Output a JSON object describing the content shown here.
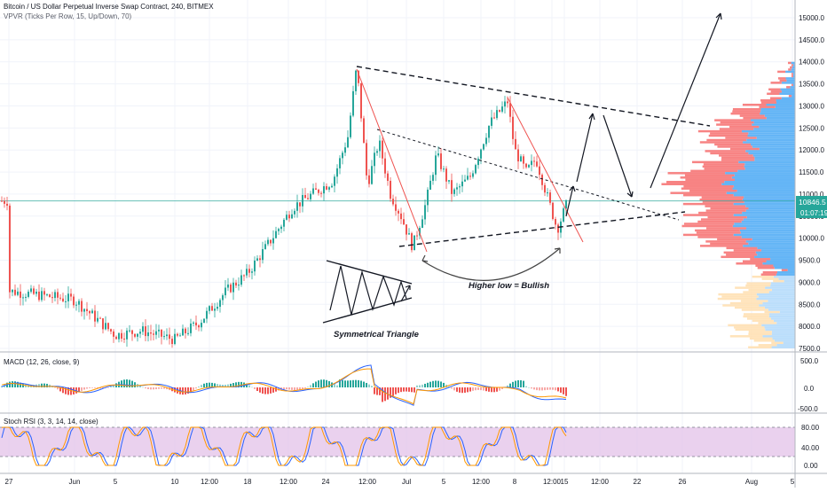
{
  "header": {
    "title": "Bitcoin / US Dollar Perpetual Inverse Swap Contract, 240, BITMEX",
    "indicator": "VPVR (Ticks Per Row, 15, Up/Down, 70)"
  },
  "price_axis": {
    "ticks": [
      "15000.0",
      "14500.0",
      "14000.0",
      "13500.0",
      "13000.0",
      "12500.0",
      "12000.0",
      "11500.0",
      "11000.0",
      "10500.0",
      "10000.0",
      "9500.0",
      "9000.0",
      "8500.0",
      "8000.0",
      "7500.0"
    ],
    "current_price": "10846.5",
    "countdown": "01:07:19"
  },
  "macd": {
    "label": "MACD (12, 26, close, 9)",
    "ticks": [
      "500.0",
      "0.0",
      "-500.0"
    ]
  },
  "stoch": {
    "label": "Stoch RSI (3, 3, 14, 14, close)",
    "ticks": [
      "80.00",
      "40.00",
      "0.00"
    ]
  },
  "time_axis": {
    "labels": [
      "27",
      "Jun",
      "5",
      "10",
      "12:00",
      "18",
      "12:00",
      "24",
      "12:00",
      "Jul",
      "5",
      "12:00",
      "8",
      "12:00",
      "15",
      "12:00",
      "22",
      "26",
      "Aug",
      "5"
    ]
  },
  "annotations": {
    "higher_low": "Higher low = Bullish",
    "sym_triangle": "Symmetrical Triangle"
  },
  "colors": {
    "up": "#26a69a",
    "down": "#ef5350",
    "vp_up": "#64b5f6",
    "vp_down": "#f77c7c",
    "vp_faint_up": "#bbdefb",
    "vp_faint_down": "#ffe0b2",
    "price_line": "#26a69a",
    "macd": "#2962ff",
    "signal": "#ff9800",
    "stoch_fill": "#e1bee7"
  },
  "chart_data": {
    "type": "candlestick",
    "symbol": "Bitcoin / US Dollar Perpetual Inverse Swap Contract",
    "interval": "240",
    "exchange": "BITMEX",
    "price_range": [
      7400,
      15300
    ],
    "close_path": [
      {
        "t": "May 27",
        "p": 8800
      },
      {
        "t": "Jun 1",
        "p": 8600
      },
      {
        "t": "Jun 4",
        "p": 7800
      },
      {
        "t": "Jun 7",
        "p": 7900
      },
      {
        "t": "Jun 10",
        "p": 7700
      },
      {
        "t": "Jun 13",
        "p": 8100
      },
      {
        "t": "Jun 16",
        "p": 8800
      },
      {
        "t": "Jun 18",
        "p": 9200
      },
      {
        "t": "Jun 21",
        "p": 9800
      },
      {
        "t": "Jun 22",
        "p": 10700
      },
      {
        "t": "Jun 23",
        "p": 11000
      },
      {
        "t": "Jun 24",
        "p": 11300
      },
      {
        "t": "Jun 25",
        "p": 12300
      },
      {
        "t": "Jun 26",
        "p": 13900
      },
      {
        "t": "Jun 27",
        "p": 11200
      },
      {
        "t": "Jun 28",
        "p": 12200
      },
      {
        "t": "Jun 30",
        "p": 11000
      },
      {
        "t": "Jul 1",
        "p": 10500
      },
      {
        "t": "Jul 2",
        "p": 9800
      },
      {
        "t": "Jul 3",
        "p": 10800
      },
      {
        "t": "Jul 4",
        "p": 11900
      },
      {
        "t": "Jul 5",
        "p": 11000
      },
      {
        "t": "Jul 7",
        "p": 11400
      },
      {
        "t": "Jul 9",
        "p": 12600
      },
      {
        "t": "Jul 10",
        "p": 13100
      },
      {
        "t": "Jul 11",
        "p": 12000
      },
      {
        "t": "Jul 12",
        "p": 11500
      },
      {
        "t": "Jul 13",
        "p": 11800
      },
      {
        "t": "Jul 14",
        "p": 11000
      },
      {
        "t": "Jul 15",
        "p": 10200
      },
      {
        "t": "Jul 16",
        "p": 10846.5
      }
    ],
    "current_price": 10846.5,
    "volume_profile_poc": 11300
  }
}
